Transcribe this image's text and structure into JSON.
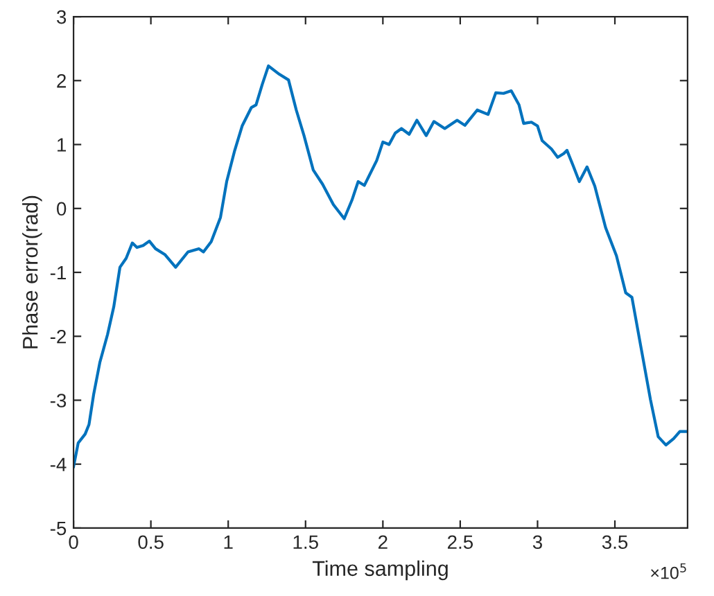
{
  "chart_data": {
    "type": "line",
    "xlabel": "Time sampling",
    "ylabel": "Phase error(rad)",
    "annotations": [
      "×10$^{5}$"
    ],
    "x": [
      0,
      0.03,
      0.075,
      0.1,
      0.13,
      0.17,
      0.22,
      0.26,
      0.3,
      0.34,
      0.38,
      0.41,
      0.45,
      0.49,
      0.53,
      0.59,
      0.66,
      0.74,
      0.81,
      0.84,
      0.89,
      0.95,
      0.99,
      1.04,
      1.09,
      1.15,
      1.18,
      1.22,
      1.26,
      1.33,
      1.39,
      1.44,
      1.49,
      1.55,
      1.61,
      1.68,
      1.75,
      1.8,
      1.84,
      1.88,
      1.96,
      2.0,
      2.04,
      2.08,
      2.12,
      2.17,
      2.22,
      2.28,
      2.33,
      2.4,
      2.48,
      2.53,
      2.61,
      2.68,
      2.73,
      2.78,
      2.83,
      2.88,
      2.91,
      2.96,
      3.0,
      3.03,
      3.09,
      3.13,
      3.17,
      3.19,
      3.23,
      3.27,
      3.32,
      3.37,
      3.44,
      3.51,
      3.57,
      3.61,
      3.67,
      3.73,
      3.78,
      3.83,
      3.88,
      3.92,
      3.97
    ],
    "series": [
      {
        "color": "#0072bd",
        "values": [
          -4.04,
          -3.67,
          -3.53,
          -3.38,
          -2.91,
          -2.41,
          -1.97,
          -1.54,
          -0.92,
          -0.78,
          -0.54,
          -0.61,
          -0.58,
          -0.51,
          -0.63,
          -0.72,
          -0.92,
          -0.68,
          -0.63,
          -0.68,
          -0.52,
          -0.14,
          0.42,
          0.89,
          1.29,
          1.58,
          1.62,
          1.94,
          2.23,
          2.1,
          2.01,
          1.54,
          1.14,
          0.6,
          0.38,
          0.06,
          -0.16,
          0.13,
          0.42,
          0.36,
          0.75,
          1.04,
          1.0,
          1.18,
          1.25,
          1.16,
          1.38,
          1.14,
          1.36,
          1.25,
          1.38,
          1.3,
          1.54,
          1.47,
          1.81,
          1.8,
          1.84,
          1.62,
          1.33,
          1.35,
          1.29,
          1.06,
          0.93,
          0.8,
          0.86,
          0.91,
          0.67,
          0.42,
          0.65,
          0.35,
          -0.3,
          -0.74,
          -1.32,
          -1.39,
          -2.19,
          -2.99,
          -3.57,
          -3.7,
          -3.6,
          -3.49,
          -3.49
        ]
      }
    ],
    "xlim": [
      0,
      3.97
    ],
    "xticks": [
      0,
      0.5,
      1,
      1.5,
      2,
      2.5,
      3,
      3.5
    ],
    "ylim": [
      -5,
      3
    ],
    "yticks": [
      -5,
      -4,
      -3,
      -2,
      -1,
      0,
      1,
      2,
      3
    ],
    "grid": false,
    "marker": "none",
    "line_style": "solid"
  }
}
